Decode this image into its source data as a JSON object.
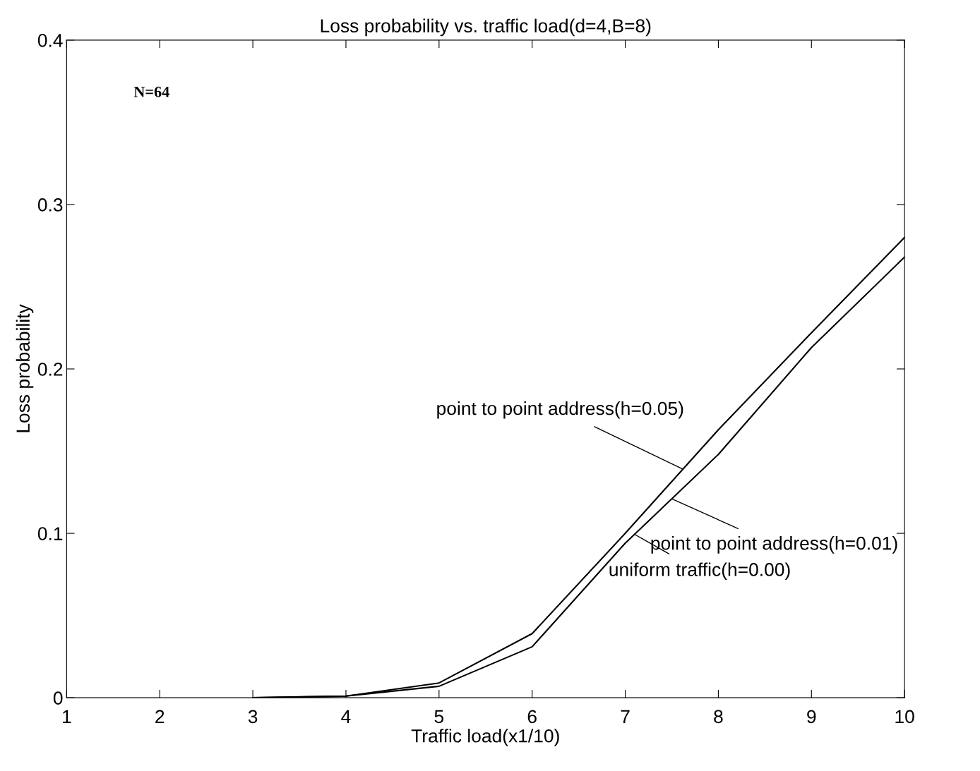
{
  "chart_data": {
    "type": "line",
    "title": "Loss probability vs. traffic load(d=4,B=8)",
    "xlabel": "Traffic load(x1/10)",
    "ylabel": "Loss probability",
    "x": [
      3,
      4,
      5,
      6,
      7,
      8,
      9,
      10
    ],
    "series": [
      {
        "color": "#000000",
        "values": [
          0,
          0.001,
          0.009,
          0.039,
          0.1,
          0.163,
          0.222,
          0.28
        ]
      },
      {
        "color": "#000000",
        "values": [
          0,
          0.001,
          0.007,
          0.031,
          0.094,
          0.148,
          0.213,
          0.268
        ]
      }
    ],
    "xlim": [
      1,
      10
    ],
    "ylim": [
      0,
      0.4
    ],
    "xticks": [
      1,
      2,
      3,
      4,
      5,
      6,
      7,
      8,
      9,
      10
    ],
    "yticks": [
      0,
      0.1,
      0.2,
      0.3,
      0.4
    ],
    "grid": false,
    "legend": false,
    "marker": "none",
    "line_style": "solid",
    "annotations": [
      "N=64",
      {
        "text": "point to point address(h=0.05)",
        "x": 7.62,
        "y": 0.139
      },
      {
        "text": "point to point address(h=0.01)",
        "x": 7.5,
        "y": 0.121
      },
      {
        "text": "uniform traffic(h=0.00)",
        "x": 7.1,
        "y": 0.0994
      }
    ]
  }
}
